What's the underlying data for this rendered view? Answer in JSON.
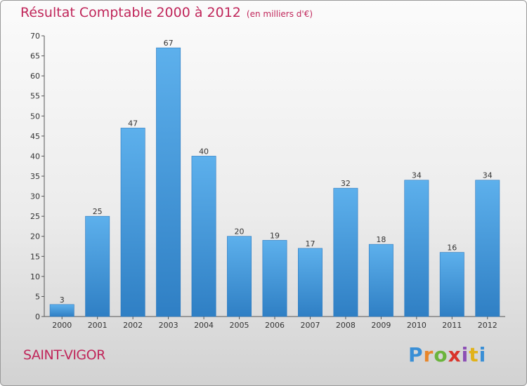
{
  "header": {
    "title": "Résultat Comptable 2000 à 2012",
    "subtitle": "(en milliers d'€)"
  },
  "footer": {
    "commune": "SAINT-VIGOR",
    "logo_letters": [
      "P",
      "r",
      "o",
      "x",
      "i",
      "t",
      "i"
    ]
  },
  "colors": {
    "bar": "#3f96d8",
    "bar_light": "#5aaeeb",
    "accent": "#c0265a",
    "logo": [
      "#3a8fd6",
      "#e8862a",
      "#6bb43c",
      "#d9342b",
      "#8c4fb5",
      "#e1b21a",
      "#3a8fd6"
    ]
  },
  "chart_data": {
    "type": "bar",
    "title": "Résultat Comptable 2000 à 2012",
    "subtitle": "(en milliers d'€)",
    "categories": [
      "2000",
      "2001",
      "2002",
      "2003",
      "2004",
      "2005",
      "2006",
      "2007",
      "2008",
      "2009",
      "2010",
      "2011",
      "2012"
    ],
    "values": [
      3,
      25,
      47,
      67,
      40,
      20,
      19,
      17,
      32,
      18,
      34,
      16,
      34
    ],
    "ylim": [
      0,
      70
    ],
    "yticks": [
      0,
      5,
      10,
      15,
      20,
      25,
      30,
      35,
      40,
      45,
      50,
      55,
      60,
      65,
      70
    ],
    "grid": false,
    "legend": "none"
  }
}
